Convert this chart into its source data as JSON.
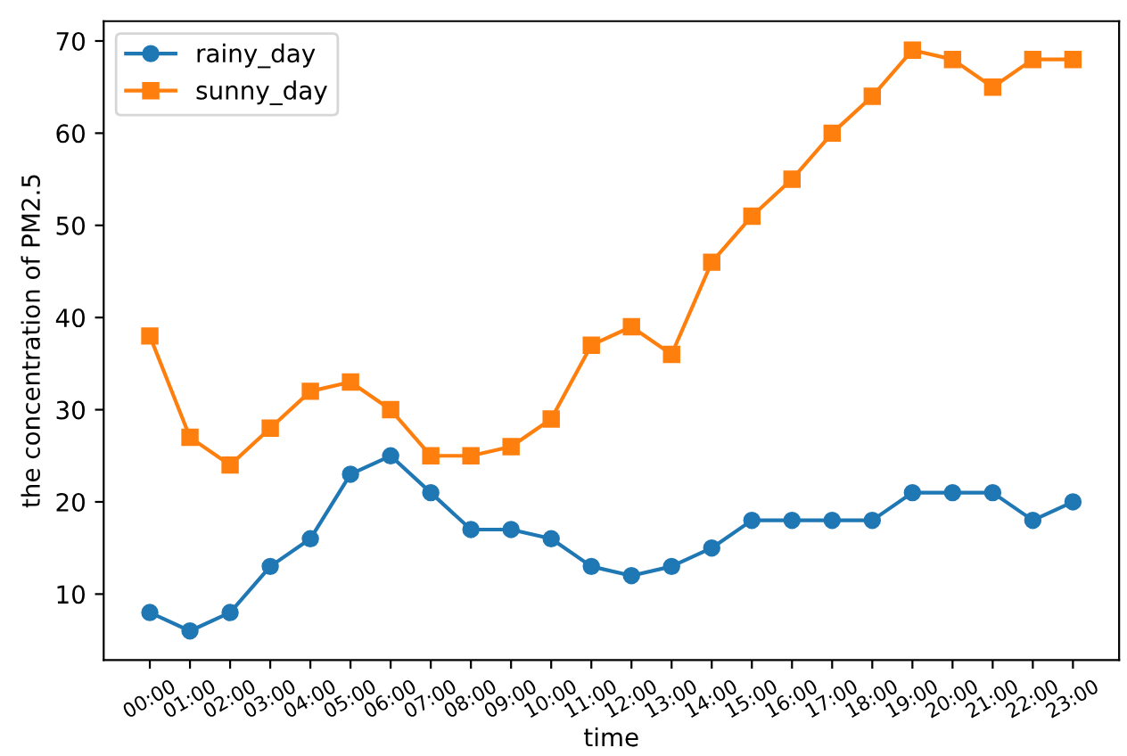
{
  "chart_data": {
    "type": "line",
    "xlabel": "time",
    "ylabel": "the concentration of PM2.5",
    "categories": [
      "00:00",
      "01:00",
      "02:00",
      "03:00",
      "04:00",
      "05:00",
      "06:00",
      "07:00",
      "08:00",
      "09:00",
      "10:00",
      "11:00",
      "12:00",
      "13:00",
      "14:00",
      "15:00",
      "16:00",
      "17:00",
      "18:00",
      "19:00",
      "20:00",
      "21:00",
      "22:00",
      "23:00"
    ],
    "series": [
      {
        "name": "rainy_day",
        "color": "#1f77b4",
        "marker": "circle",
        "values": [
          8,
          6,
          8,
          13,
          16,
          23,
          25,
          21,
          17,
          17,
          16,
          13,
          12,
          13,
          15,
          18,
          18,
          18,
          18,
          21,
          21,
          21,
          18,
          20
        ]
      },
      {
        "name": "sunny_day",
        "color": "#ff7f0e",
        "marker": "square",
        "values": [
          38,
          27,
          24,
          28,
          32,
          33,
          30,
          25,
          25,
          26,
          29,
          37,
          39,
          36,
          46,
          51,
          55,
          60,
          64,
          69,
          68,
          65,
          68,
          68
        ]
      }
    ],
    "ylim": [
      2.85,
      72.15
    ],
    "yticks": [
      10,
      20,
      30,
      40,
      50,
      60,
      70
    ],
    "grid": false,
    "legend": "top left",
    "line_style": "solid"
  }
}
